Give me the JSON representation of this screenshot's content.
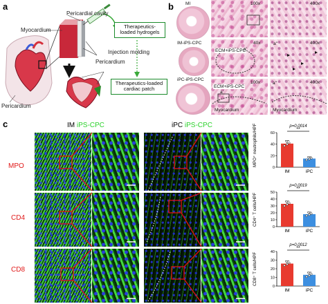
{
  "panel_a": {
    "label": "a",
    "pericardial_cavity": "Pericardial cavity",
    "myocardium": "Myocardium",
    "pericardium_left": "Pericardium",
    "pericardium_mid": "Pericardium",
    "box_hydrogels": "Therapeutics-loaded hydrogels",
    "injection_molding": "Injection molding",
    "box_patch": "Therapeutics-loaded cardiac patch"
  },
  "panel_b": {
    "label": "b",
    "rows": [
      "MI",
      "IM-iPS-CPC",
      "iPC-iPS-CPC"
    ],
    "zoom_100x": "100x",
    "zoom_400x": "400x",
    "zoom_40x": "40x",
    "ecm_label": "ECM+iPS-CPC",
    "a_prime": "a'",
    "a_double_prime": "a''",
    "myocardium1": "Myocardium",
    "myocardium2": "Myocardium"
  },
  "panel_c": {
    "label": "c",
    "col_im": "IM",
    "col_ipc": "iPC",
    "cells": "iPS-CPC",
    "rows": [
      "MPO",
      "CD4",
      "CD8"
    ]
  },
  "colors": {
    "red_label": "#e01818",
    "green_label": "#2bd22b",
    "bar_im": "#e83a2f",
    "bar_ipc": "#3d8fe0"
  },
  "chart_data": [
    {
      "type": "bar",
      "categories": [
        "IM",
        "iPC"
      ],
      "values": [
        41,
        15
      ],
      "errors": [
        5,
        3
      ],
      "ylabel": "MPO⁺ neutrophils/HPF",
      "ylim": [
        0,
        60
      ],
      "yticks": [
        "0",
        "20",
        "40",
        "60"
      ],
      "p_value": "p=0.0014",
      "significance": "**"
    },
    {
      "type": "bar",
      "categories": [
        "IM",
        "iPC"
      ],
      "values": [
        33,
        18
      ],
      "errors": [
        4,
        3
      ],
      "ylabel": "CD4⁺ T cells/HPF",
      "ylim": [
        0,
        50
      ],
      "yticks": [
        "0",
        "10",
        "20",
        "30",
        "40",
        "50"
      ],
      "p_value": "p=0.0019",
      "significance": "**"
    },
    {
      "type": "bar",
      "categories": [
        "IM",
        "iPC"
      ],
      "values": [
        26,
        13
      ],
      "errors": [
        3,
        3
      ],
      "ylabel": "CD8⁺ T cells/HPF",
      "ylim": [
        0,
        40
      ],
      "yticks": [
        "0",
        "10",
        "20",
        "30",
        "40"
      ],
      "p_value": "p=0.0012",
      "significance": "**"
    }
  ]
}
